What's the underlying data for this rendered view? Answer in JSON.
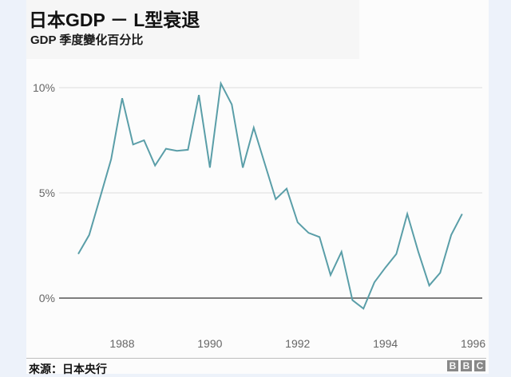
{
  "header": {
    "title": "日本GDP － L型衰退",
    "subtitle": "GDP  季度變化百分比"
  },
  "footer": {
    "source": "來源：日本央行",
    "logo": [
      "B",
      "B",
      "C"
    ]
  },
  "colors": {
    "line": "#5a9ea8",
    "gridline": "#dcdcdc",
    "zero_line": "#555555",
    "page_margin": "#edf2fa",
    "tick_text": "#666666"
  },
  "chart_data": {
    "type": "line",
    "title": "日本GDP － L型衰退",
    "subtitle": "GDP 季度變化百分比",
    "xlabel": "",
    "ylabel": "",
    "ylim": [
      -0.8,
      10.5
    ],
    "yticks": [
      0,
      5,
      10
    ],
    "ytick_labels": [
      "0%",
      "5%",
      "10%"
    ],
    "xticks": [
      1988,
      1990,
      1992,
      1994,
      1996
    ],
    "xtick_labels": [
      "1988",
      "1990",
      "1992",
      "1994",
      "1996"
    ],
    "grid": true,
    "legend": "none",
    "x": [
      1987.0,
      1987.25,
      1987.5,
      1987.75,
      1988.0,
      1988.25,
      1988.5,
      1988.75,
      1989.0,
      1989.25,
      1989.5,
      1989.75,
      1990.0,
      1990.25,
      1990.5,
      1990.75,
      1991.0,
      1991.25,
      1991.5,
      1991.75,
      1992.0,
      1992.25,
      1992.5,
      1992.75,
      1993.0,
      1993.25,
      1993.5,
      1993.75,
      1994.0,
      1994.25,
      1994.5,
      1994.75,
      1995.0,
      1995.25,
      1995.5,
      1995.75
    ],
    "series": [
      {
        "name": "GDP 季度變化百分比",
        "values": [
          2.1,
          3.0,
          4.8,
          6.6,
          9.5,
          7.3,
          7.5,
          6.3,
          7.1,
          7.0,
          7.05,
          9.65,
          6.2,
          10.2,
          9.2,
          6.2,
          8.1,
          6.4,
          4.7,
          5.2,
          3.6,
          3.1,
          2.9,
          1.1,
          2.2,
          -0.1,
          -0.5,
          0.75,
          1.45,
          2.1,
          4.0,
          2.2,
          0.6,
          1.2,
          3.0,
          4.0
        ]
      }
    ]
  }
}
